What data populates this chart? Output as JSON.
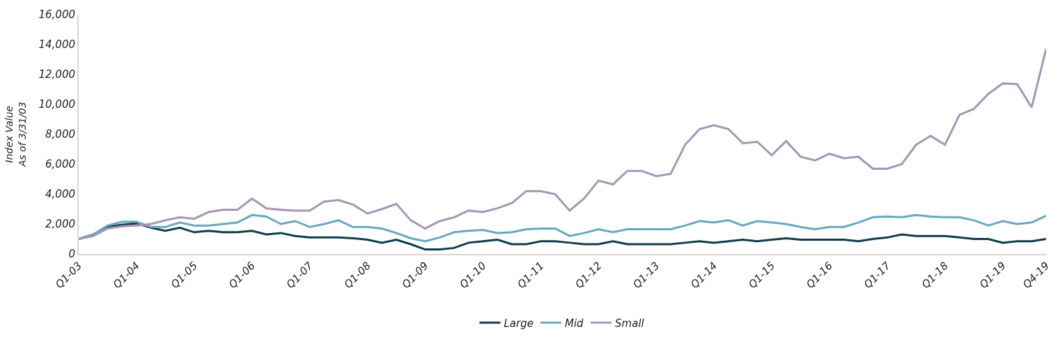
{
  "chart_data": {
    "type": "line",
    "ylabel": "Index Value\nAs of 3/31/03",
    "categories": [
      "Q1-03",
      null,
      null,
      null,
      "Q1-04",
      null,
      null,
      null,
      "Q1-05",
      null,
      null,
      null,
      "Q1-06",
      null,
      null,
      null,
      "Q1-07",
      null,
      null,
      null,
      "Q1-08",
      null,
      null,
      null,
      "Q1-09",
      null,
      null,
      null,
      "Q1-10",
      null,
      null,
      null,
      "Q1-11",
      null,
      null,
      null,
      "Q1-12",
      null,
      null,
      null,
      "Q1-13",
      null,
      null,
      null,
      "Q1-14",
      null,
      null,
      null,
      "Q1-15",
      null,
      null,
      null,
      "Q1-16",
      null,
      null,
      null,
      "Q1-17",
      null,
      null,
      null,
      "Q1-18",
      null,
      null,
      null,
      "Q1-19",
      null,
      null,
      "Q4-19"
    ],
    "series": [
      {
        "name": "Large",
        "color": "#0d3d4a",
        "values": [
          1000,
          1300,
          1800,
          1950,
          2050,
          1750,
          1550,
          1750,
          1450,
          1550,
          1450,
          1450,
          1550,
          1300,
          1400,
          1200,
          1100,
          1100,
          1100,
          1050,
          950,
          750,
          950,
          650,
          300,
          300,
          400,
          750,
          850,
          950,
          650,
          650,
          850,
          850,
          750,
          650,
          650,
          850,
          650,
          650,
          650,
          650,
          750,
          850,
          750,
          850,
          950,
          850,
          950,
          1050,
          950,
          950,
          950,
          950,
          850,
          1000,
          1100,
          1300,
          1200,
          1200,
          1200,
          1100,
          1000,
          1000,
          750,
          850,
          850,
          1000
        ]
      },
      {
        "name": "Mid",
        "color": "#68a8bf",
        "values": [
          1000,
          1300,
          1900,
          2150,
          2150,
          1800,
          1800,
          2100,
          1900,
          1900,
          2000,
          2100,
          2600,
          2500,
          2000,
          2200,
          1800,
          2000,
          2250,
          1800,
          1800,
          1700,
          1400,
          1050,
          850,
          1100,
          1450,
          1550,
          1600,
          1400,
          1450,
          1650,
          1700,
          1700,
          1200,
          1400,
          1650,
          1450,
          1650,
          1650,
          1650,
          1650,
          1900,
          2200,
          2100,
          2250,
          1900,
          2200,
          2100,
          2000,
          1800,
          1650,
          1800,
          1800,
          2100,
          2450,
          2500,
          2450,
          2600,
          2500,
          2450,
          2450,
          2250,
          1900,
          2200,
          2000,
          2100,
          2550
        ]
      },
      {
        "name": "Small",
        "color": "#a894b4",
        "values": [
          1000,
          1200,
          1700,
          1850,
          1900,
          2000,
          2250,
          2450,
          2350,
          2800,
          2950,
          2950,
          3700,
          3050,
          2950,
          2900,
          2900,
          3500,
          3600,
          3300,
          2700,
          3000,
          3350,
          2250,
          1700,
          2200,
          2450,
          2900,
          2800,
          3050,
          3400,
          4200,
          4200,
          4000,
          2900,
          3700,
          4900,
          4650,
          5550,
          5550,
          5200,
          5350,
          7300,
          8350,
          8600,
          8350,
          7400,
          7500,
          6600,
          7550,
          6500,
          6250,
          6700,
          6400,
          6500,
          5700,
          5700,
          6000,
          7300,
          7900,
          7300,
          9300,
          9700,
          10700,
          11400,
          11350,
          9800,
          13700
        ]
      }
    ],
    "ylim": [
      0,
      16000
    ],
    "yticks": [
      {
        "value": 0,
        "label": "0"
      },
      {
        "value": 2000,
        "label": "2,000"
      },
      {
        "value": 4000,
        "label": "4,000"
      },
      {
        "value": 6000,
        "label": "6,000"
      },
      {
        "value": 8000,
        "label": "8,000"
      },
      {
        "value": 10000,
        "label": "10,000"
      },
      {
        "value": 12000,
        "label": "12,000"
      },
      {
        "value": 14000,
        "label": "14,000"
      },
      {
        "value": 16000,
        "label": "16,000"
      }
    ],
    "legend": "bottom",
    "marker": "none",
    "line_style": "solid"
  }
}
